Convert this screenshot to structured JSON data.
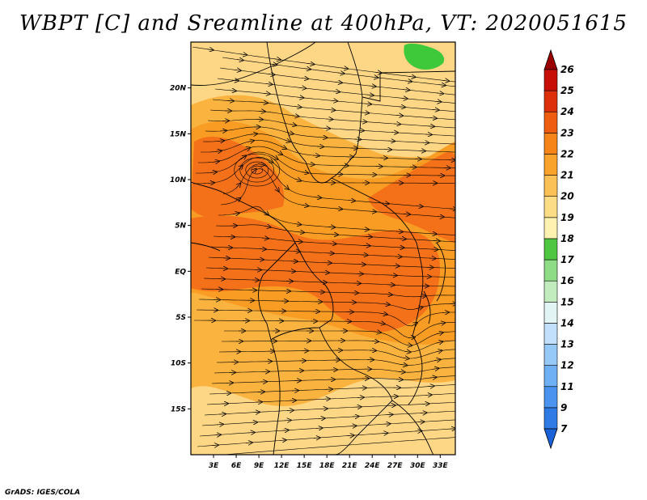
{
  "title": "WBPT [C] and Sreamline at 400hPa, VT: 2020051615",
  "credit": "GrADS: IGES/COLA",
  "map": {
    "lon_labels": [
      "3E",
      "6E",
      "9E",
      "12E",
      "15E",
      "18E",
      "21E",
      "24E",
      "27E",
      "30E",
      "33E"
    ],
    "lat_labels": [
      "20N",
      "15N",
      "10N",
      "5N",
      "EQ",
      "5S",
      "10S",
      "15S"
    ],
    "lon_range": [
      0,
      35
    ],
    "lat_range": [
      -20,
      25
    ]
  },
  "colorbar": {
    "labels": [
      "7",
      "9",
      "11",
      "12",
      "13",
      "14",
      "15",
      "16",
      "17",
      "18",
      "19",
      "20",
      "21",
      "22",
      "23",
      "24",
      "25",
      "26"
    ],
    "colors": [
      "#1b62d8",
      "#2f7be6",
      "#4a94f0",
      "#6fb0f5",
      "#97c9f8",
      "#c2e0fb",
      "#e2f4f4",
      "#c3ecbe",
      "#8fdc86",
      "#4fc642",
      "#fff2b0",
      "#fddc86",
      "#fbc056",
      "#f9a22c",
      "#f68418",
      "#ef5e10",
      "#dd300a",
      "#c70f05",
      "#9a0000"
    ]
  },
  "fill_colors": {
    "light": "#fdd785",
    "mid": "#fbb340",
    "orange": "#f99c24",
    "deep": "#f4711a",
    "green": "#3ec93a"
  }
}
